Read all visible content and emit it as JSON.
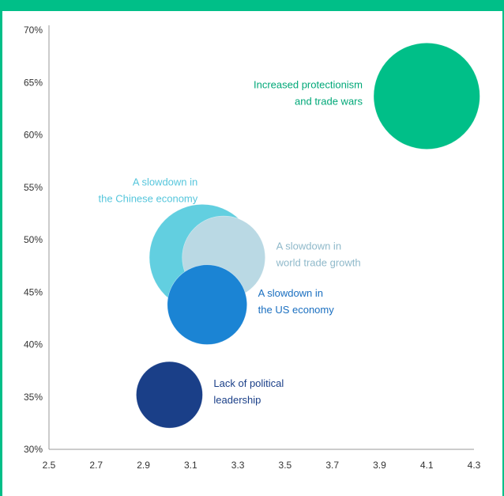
{
  "header": {
    "title": ""
  },
  "colors": {
    "frame": "#00bf88",
    "axis": "#999999",
    "tick_text": "#333333"
  },
  "chart_data": {
    "type": "scatter",
    "title": "",
    "xlabel": "",
    "ylabel": "",
    "xlim": [
      2.5,
      4.3
    ],
    "ylim": [
      30,
      70
    ],
    "x_ticks": [
      "2.5",
      "2.7",
      "2.9",
      "3.1",
      "3.3",
      "3.5",
      "3.7",
      "3.9",
      "4.1",
      "4.3"
    ],
    "y_ticks": [
      "30%",
      "35%",
      "40%",
      "45%",
      "50%",
      "55%",
      "60%",
      "65%",
      "70%"
    ],
    "grid": false,
    "series": [
      {
        "label_lines": [
          "Increased protectionism",
          "and trade wars"
        ],
        "x": 4.1,
        "y": 63.7,
        "size": 1.6,
        "color": "#00bf88",
        "label_color": "#00a878",
        "label_anchor": "end"
      },
      {
        "label_lines": [
          "A slowdown in",
          "the Chinese economy"
        ],
        "x": 3.15,
        "y": 48.3,
        "size": 1.6,
        "color": "#62cfe0",
        "label_color": "#56c6dc",
        "label_anchor": "end"
      },
      {
        "label_lines": [
          "A slowdown in",
          "world trade growth"
        ],
        "x": 3.24,
        "y": 48.3,
        "size": 1.25,
        "color": "#bad9e4",
        "label_color": "#8fb9ca",
        "label_anchor": "start"
      },
      {
        "label_lines": [
          "A slowdown in",
          "the US economy"
        ],
        "x": 3.17,
        "y": 43.8,
        "size": 1.2,
        "color": "#1b84d4",
        "label_color": "#1a6fc0",
        "label_anchor": "start"
      },
      {
        "label_lines": [
          "Lack of political",
          "leadership"
        ],
        "x": 3.01,
        "y": 35.2,
        "size": 1.0,
        "color": "#1a3f88",
        "label_color": "#1a3f88",
        "label_anchor": "start"
      }
    ]
  }
}
